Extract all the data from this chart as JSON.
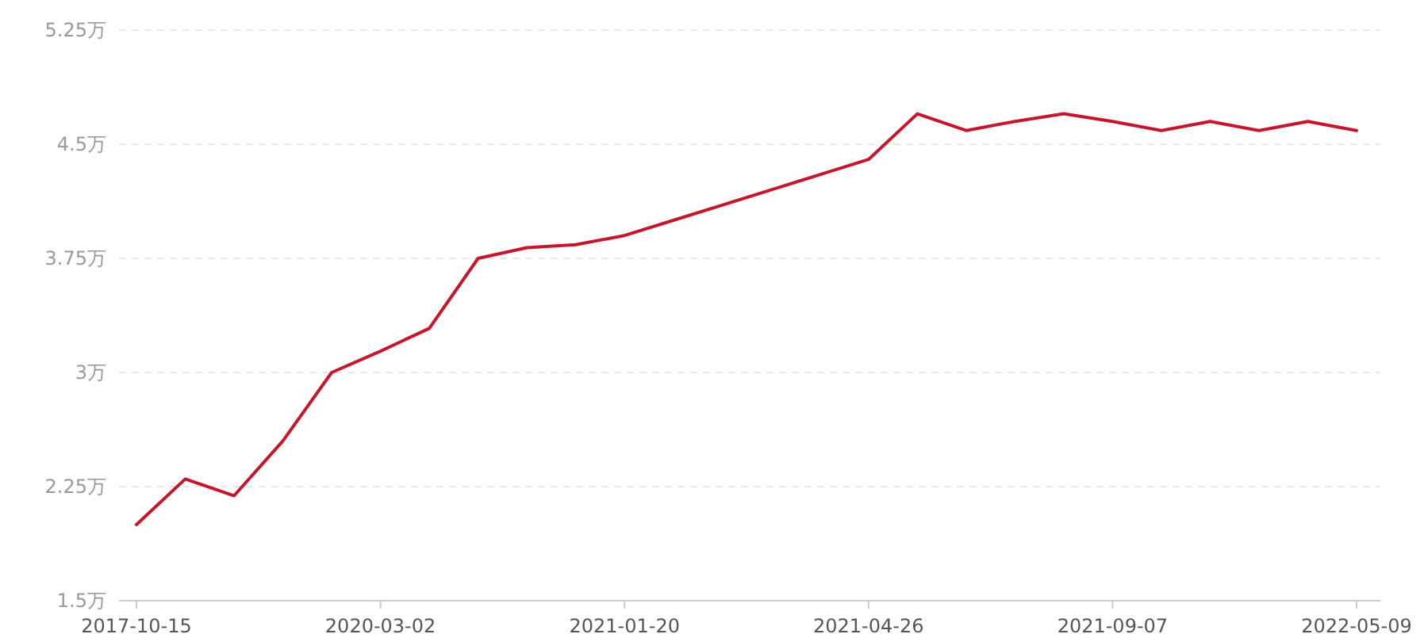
{
  "chart_data": {
    "type": "line",
    "categories": [
      "2017-10-15",
      null,
      null,
      null,
      null,
      "2020-03-02",
      null,
      null,
      null,
      null,
      "2021-01-20",
      null,
      null,
      null,
      null,
      "2021-04-26",
      null,
      null,
      null,
      null,
      "2021-09-07",
      null,
      null,
      null,
      null,
      "2022-05-09"
    ],
    "series": [
      {
        "color": "#c4172c",
        "values": [
          2.0,
          2.3,
          2.19,
          2.55,
          3.0,
          3.14,
          3.29,
          3.75,
          3.82,
          3.84,
          3.9,
          4.0,
          4.1,
          4.2,
          4.3,
          4.4,
          4.7,
          4.59,
          4.65,
          4.7,
          4.65,
          4.59,
          4.65,
          4.59,
          4.65,
          4.59
        ]
      }
    ],
    "ylim": [
      1.5,
      5.25
    ],
    "yticks": [
      {
        "value": 1.5,
        "label": "1.5万"
      },
      {
        "value": 2.25,
        "label": "2.25万"
      },
      {
        "value": 3,
        "label": "3万"
      },
      {
        "value": 3.75,
        "label": "3.75万"
      },
      {
        "value": 4.5,
        "label": "4.5万"
      },
      {
        "value": 5.25,
        "label": "5.25万"
      }
    ],
    "grid": "y",
    "marker": "none",
    "line_style": "solid"
  }
}
